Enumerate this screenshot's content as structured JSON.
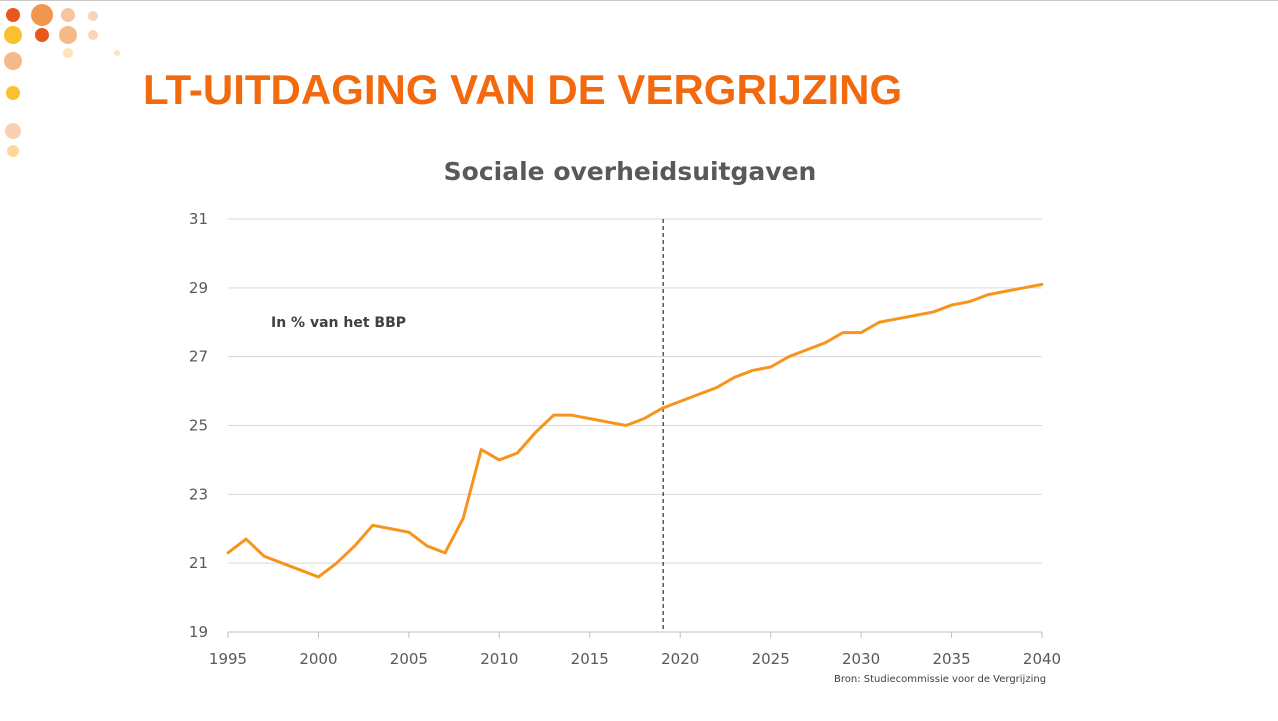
{
  "slide": {
    "title": "LT-UITDAGING VAN DE VERGRIJZING",
    "decoration_colors": [
      "#e8581c",
      "#f08a3c",
      "#f7b58a",
      "#fbc02d",
      "#fdd89a"
    ]
  },
  "chart_data": {
    "type": "line",
    "title": "Sociale overheidsuitgaven",
    "annotation": "In % van het BBP",
    "source": "Bron: Studiecommissie voor de Vergrijzing",
    "xlabel": "",
    "ylabel": "",
    "xlim": [
      1995,
      2040
    ],
    "ylim": [
      19,
      31
    ],
    "yticks": [
      19,
      21,
      23,
      25,
      27,
      29,
      31
    ],
    "xticks": [
      1995,
      2000,
      2005,
      2010,
      2015,
      2020,
      2025,
      2030,
      2035,
      2040
    ],
    "grid": true,
    "forecast_start": 2019,
    "line_color": "#f7941d",
    "series": [
      {
        "x": [
          1995,
          1996,
          1997,
          1998,
          1999,
          2000,
          2001,
          2002,
          2003,
          2004,
          2005,
          2006,
          2007,
          2008,
          2009,
          2010,
          2011,
          2012,
          2013,
          2014,
          2015,
          2016,
          2017,
          2018,
          2019,
          2020,
          2021,
          2022,
          2023,
          2024,
          2025,
          2026,
          2027,
          2028,
          2029,
          2030,
          2031,
          2032,
          2033,
          2034,
          2035,
          2036,
          2037,
          2038,
          2039,
          2040
        ],
        "values": [
          21.3,
          21.7,
          21.2,
          21.0,
          20.8,
          20.6,
          21.0,
          21.5,
          22.1,
          22.0,
          21.9,
          21.5,
          21.3,
          22.3,
          24.3,
          24.0,
          24.2,
          24.8,
          25.3,
          25.3,
          25.2,
          25.1,
          25.0,
          25.2,
          25.5,
          25.7,
          25.9,
          26.1,
          26.4,
          26.6,
          26.7,
          27.0,
          27.2,
          27.4,
          27.7,
          27.7,
          28.0,
          28.1,
          28.2,
          28.3,
          28.5,
          28.6,
          28.8,
          28.9,
          29.0,
          29.1
        ]
      }
    ]
  }
}
